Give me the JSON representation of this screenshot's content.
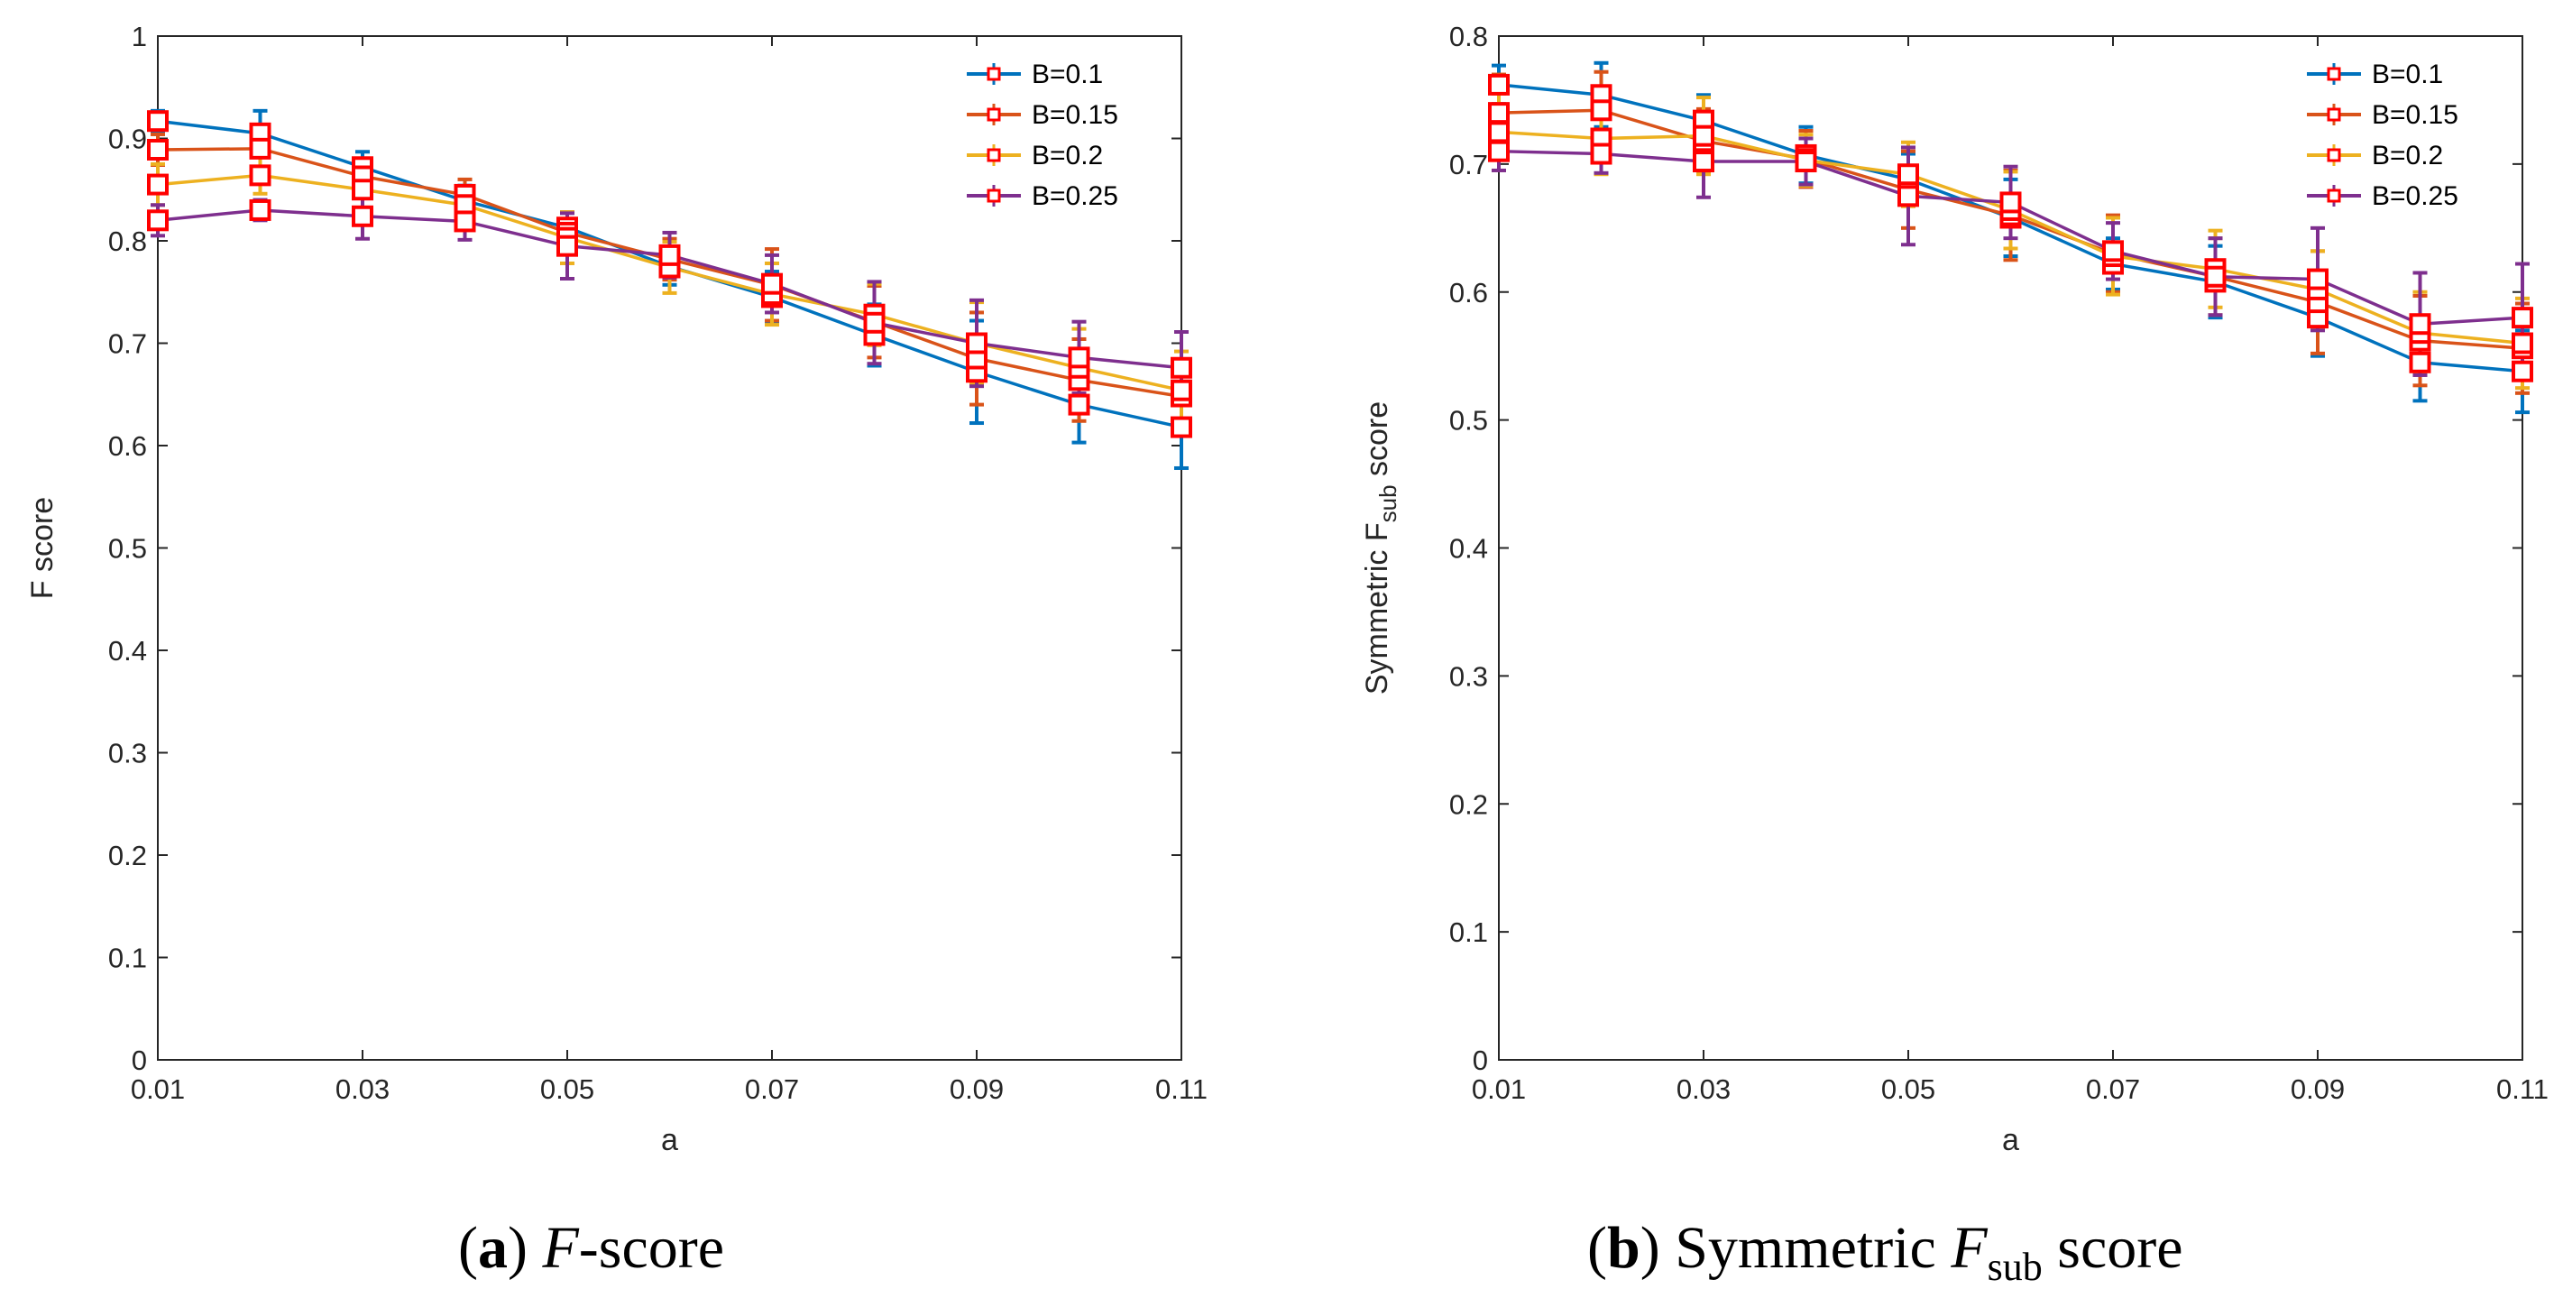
{
  "captions": [
    {
      "tag": "a",
      "rest": "-score",
      "italic": "F",
      "sub": ""
    },
    {
      "tag": "b",
      "rest": " score",
      "prefix": "Symmetric ",
      "italic": "F",
      "sub": "sub"
    }
  ],
  "legend_labels": [
    "B=0.1",
    "B=0.15",
    "B=0.2",
    "B=0.25"
  ],
  "series_colors": [
    "#0072BD",
    "#D95319",
    "#EDB120",
    "#7E2F8E"
  ],
  "marker_color": "#FF0000",
  "chart_data": [
    {
      "type": "line",
      "title": "",
      "xlabel": "a",
      "ylabel": "F score",
      "xlim": [
        0.01,
        0.11
      ],
      "ylim": [
        0,
        1
      ],
      "xticks": [
        "0.01",
        "0.03",
        "0.05",
        "0.07",
        "0.09",
        "0.11"
      ],
      "yticks": [
        "0",
        "0.1",
        "0.2",
        "0.3",
        "0.4",
        "0.5",
        "0.6",
        "0.7",
        "0.8",
        "0.9",
        "1"
      ],
      "x": [
        0.01,
        0.02,
        0.03,
        0.04,
        0.05,
        0.06,
        0.07,
        0.08,
        0.09,
        0.1,
        0.11
      ],
      "series": [
        {
          "name": "B=0.1",
          "values": [
            0.917,
            0.905,
            0.872,
            0.839,
            0.813,
            0.775,
            0.745,
            0.708,
            0.672,
            0.64,
            0.618
          ],
          "errors": [
            0.01,
            0.022,
            0.015,
            0.015,
            0.015,
            0.018,
            0.025,
            0.03,
            0.05,
            0.037,
            0.04
          ]
        },
        {
          "name": "B=0.15",
          "values": [
            0.889,
            0.89,
            0.863,
            0.845,
            0.808,
            0.782,
            0.757,
            0.721,
            0.685,
            0.664,
            0.648
          ],
          "errors": [
            0.015,
            0.018,
            0.016,
            0.015,
            0.02,
            0.02,
            0.035,
            0.035,
            0.045,
            0.04,
            0.035
          ]
        },
        {
          "name": "B=0.2",
          "values": [
            0.855,
            0.864,
            0.85,
            0.835,
            0.803,
            0.774,
            0.748,
            0.728,
            0.7,
            0.676,
            0.654
          ],
          "errors": [
            0.02,
            0.018,
            0.018,
            0.018,
            0.025,
            0.025,
            0.03,
            0.03,
            0.04,
            0.038,
            0.038
          ]
        },
        {
          "name": "B=0.25",
          "values": [
            0.82,
            0.83,
            0.824,
            0.819,
            0.795,
            0.786,
            0.758,
            0.72,
            0.7,
            0.686,
            0.676
          ],
          "errors": [
            0.015,
            0.01,
            0.022,
            0.018,
            0.032,
            0.022,
            0.028,
            0.04,
            0.042,
            0.035,
            0.035
          ]
        }
      ],
      "legend": "top-right"
    },
    {
      "type": "line",
      "title": "",
      "xlabel": "a",
      "ylabel": "Symmetric F",
      "ylabel_sub": "sub",
      "ylabel_tail": " score",
      "xlim": [
        0.01,
        0.11
      ],
      "ylim": [
        0,
        0.8
      ],
      "xticks": [
        "0.01",
        "0.03",
        "0.05",
        "0.07",
        "0.09",
        "0.11"
      ],
      "yticks": [
        "0",
        "0.1",
        "0.2",
        "0.3",
        "0.4",
        "0.5",
        "0.6",
        "0.7",
        "0.8"
      ],
      "x": [
        0.01,
        0.02,
        0.03,
        0.04,
        0.05,
        0.06,
        0.07,
        0.08,
        0.09,
        0.1,
        0.11
      ],
      "series": [
        {
          "name": "B=0.1",
          "values": [
            0.762,
            0.754,
            0.734,
            0.707,
            0.688,
            0.658,
            0.622,
            0.608,
            0.58,
            0.545,
            0.538
          ],
          "errors": [
            0.015,
            0.025,
            0.02,
            0.022,
            0.02,
            0.03,
            0.02,
            0.028,
            0.03,
            0.03,
            0.032
          ]
        },
        {
          "name": "B=0.15",
          "values": [
            0.74,
            0.742,
            0.718,
            0.704,
            0.68,
            0.66,
            0.63,
            0.612,
            0.592,
            0.562,
            0.556
          ],
          "errors": [
            0.03,
            0.03,
            0.025,
            0.022,
            0.03,
            0.035,
            0.03,
            0.03,
            0.04,
            0.035,
            0.035
          ]
        },
        {
          "name": "B=0.2",
          "values": [
            0.725,
            0.72,
            0.722,
            0.703,
            0.692,
            0.664,
            0.628,
            0.618,
            0.602,
            0.568,
            0.56
          ],
          "errors": [
            0.03,
            0.028,
            0.03,
            0.02,
            0.025,
            0.03,
            0.03,
            0.03,
            0.03,
            0.032,
            0.035
          ]
        },
        {
          "name": "B=0.25",
          "values": [
            0.71,
            0.708,
            0.702,
            0.702,
            0.675,
            0.67,
            0.632,
            0.612,
            0.61,
            0.575,
            0.58
          ],
          "errors": [
            0.015,
            0.015,
            0.028,
            0.018,
            0.038,
            0.028,
            0.022,
            0.03,
            0.04,
            0.04,
            0.042
          ]
        }
      ],
      "legend": "top-right"
    }
  ]
}
